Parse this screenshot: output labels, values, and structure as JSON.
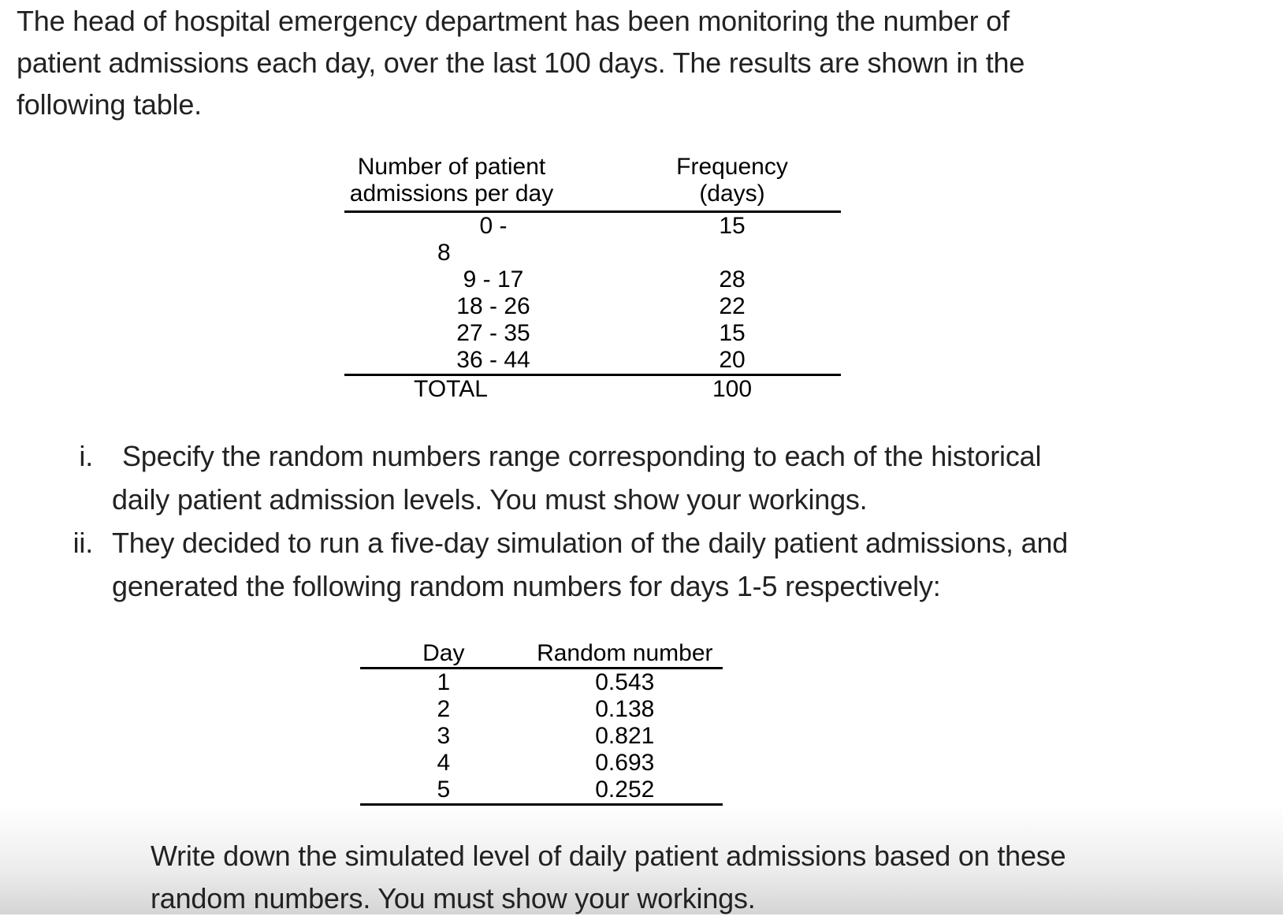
{
  "page": {
    "background_color": "#ffffff",
    "bottom_fade_color": "#d5d5d5",
    "text_color": "#222222"
  },
  "intro": {
    "lines": [
      "The head of hospital emergency department has been monitoring the number of",
      "patient admissions each day, over the last 100 days. The results are shown in the",
      "following table."
    ]
  },
  "admissions_table": {
    "header": {
      "col1_line1": "Number of patient",
      "col1_line2": "admissions per day",
      "col2_line1": "Frequency",
      "col2_line2": "(days)"
    },
    "rows": [
      {
        "range": "0 -",
        "freq": "15"
      },
      {
        "range": "8",
        "freq": ""
      },
      {
        "range": "9 - 17",
        "freq": "28"
      },
      {
        "range": "18 - 26",
        "freq": "22"
      },
      {
        "range": "27 - 35",
        "freq": "15"
      },
      {
        "range": "36 - 44",
        "freq": "20"
      }
    ],
    "total": {
      "label": "TOTAL",
      "value": "100"
    }
  },
  "questions": [
    {
      "marker": "i.",
      "lines": [
        "Specify the random numbers range corresponding to each of the historical",
        "daily patient admission levels. You must show your workings."
      ]
    },
    {
      "marker": "ii.",
      "lines": [
        "They decided to run a five-day simulation of the daily patient admissions, and",
        "generated the following random numbers for days 1-5 respectively:"
      ]
    }
  ],
  "random_table": {
    "header": {
      "col1": "Day",
      "col2": "Random number"
    },
    "rows": [
      {
        "day": "1",
        "random_number": "0.543"
      },
      {
        "day": "2",
        "random_number": "0.138"
      },
      {
        "day": "3",
        "random_number": "0.821"
      },
      {
        "day": "4",
        "random_number": "0.693"
      },
      {
        "day": "5",
        "random_number": "0.252"
      }
    ]
  },
  "closing": {
    "lines": [
      "Write down the simulated level of daily patient admissions based on these",
      "random numbers. You must show your workings."
    ]
  }
}
